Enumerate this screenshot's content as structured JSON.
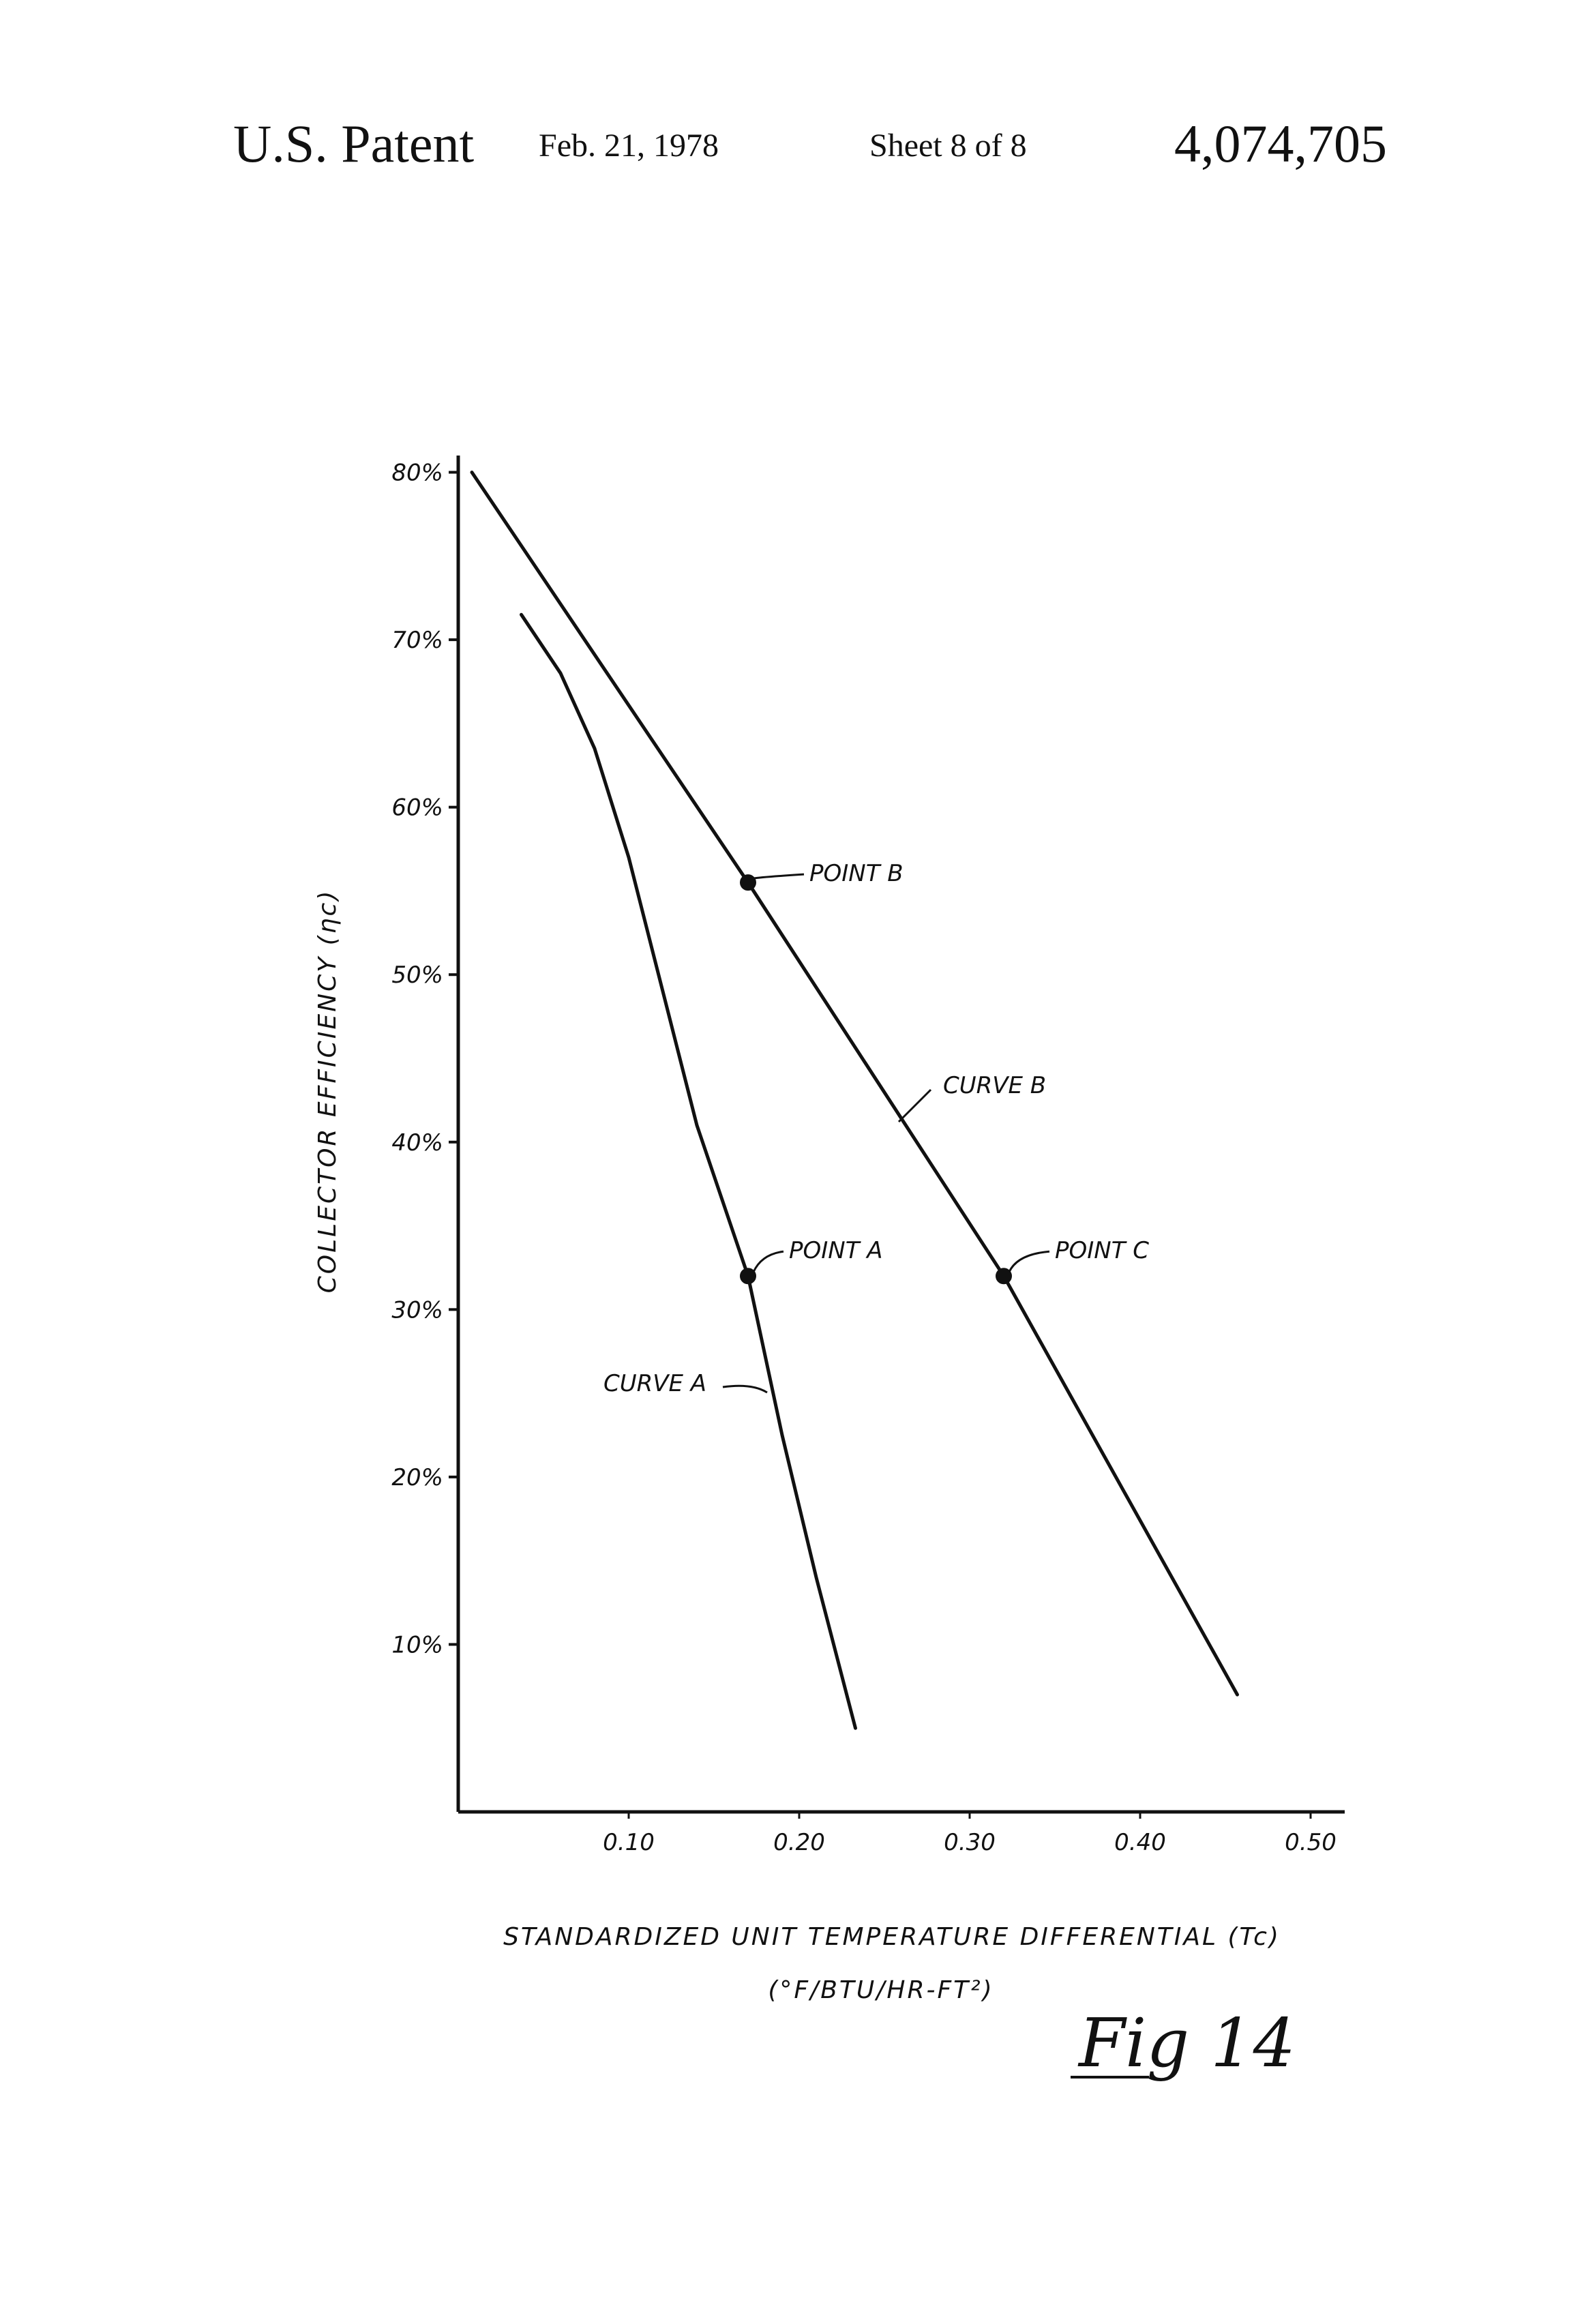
{
  "header": {
    "title": "U.S. Patent",
    "date": "Feb. 21, 1978",
    "sheet": "Sheet 8 of 8",
    "patent_number": "4,074,705"
  },
  "figure_label": "Fig 14",
  "colors": {
    "ink": "#111111",
    "paper": "#ffffff"
  },
  "chart_data": {
    "type": "line",
    "title": "",
    "xlabel": "STANDARDIZED UNIT TEMPERATURE DIFFERENTIAL (Tc)",
    "xlabel_units": "(°F/BTU/HR-FT²)",
    "ylabel": "COLLECTOR EFFICIENCY (ηc)",
    "xlim": [
      0,
      0.52
    ],
    "ylim": [
      0,
      0.81
    ],
    "x_ticks": [
      {
        "value": 0.1,
        "label": "0.10"
      },
      {
        "value": 0.2,
        "label": "0.20"
      },
      {
        "value": 0.3,
        "label": "0.30"
      },
      {
        "value": 0.4,
        "label": "0.40"
      },
      {
        "value": 0.5,
        "label": "0.50"
      }
    ],
    "y_ticks": [
      {
        "value": 0.1,
        "label": "10%"
      },
      {
        "value": 0.2,
        "label": "20%"
      },
      {
        "value": 0.3,
        "label": "30%"
      },
      {
        "value": 0.4,
        "label": "40%"
      },
      {
        "value": 0.5,
        "label": "50%"
      },
      {
        "value": 0.6,
        "label": "60%"
      },
      {
        "value": 0.7,
        "label": "70%"
      },
      {
        "value": 0.8,
        "label": "80%"
      }
    ],
    "grid": false,
    "series": [
      {
        "name": "CURVE A",
        "x": [
          0.037,
          0.06,
          0.08,
          0.1,
          0.12,
          0.14,
          0.16,
          0.17,
          0.19,
          0.21,
          0.233
        ],
        "y": [
          0.715,
          0.68,
          0.635,
          0.57,
          0.49,
          0.41,
          0.35,
          0.32,
          0.225,
          0.14,
          0.05
        ]
      },
      {
        "name": "CURVE B",
        "x": [
          0.008,
          0.17,
          0.32,
          0.457
        ],
        "y": [
          0.8,
          0.555,
          0.32,
          0.07
        ]
      }
    ],
    "points": [
      {
        "name": "POINT A",
        "x": 0.17,
        "y": 0.32
      },
      {
        "name": "POINT B",
        "x": 0.17,
        "y": 0.555
      },
      {
        "name": "POINT C",
        "x": 0.32,
        "y": 0.32
      }
    ],
    "annotations": [
      {
        "text": "CURVE A",
        "target": "CURVE A"
      },
      {
        "text": "CURVE B",
        "target": "CURVE B"
      }
    ]
  }
}
